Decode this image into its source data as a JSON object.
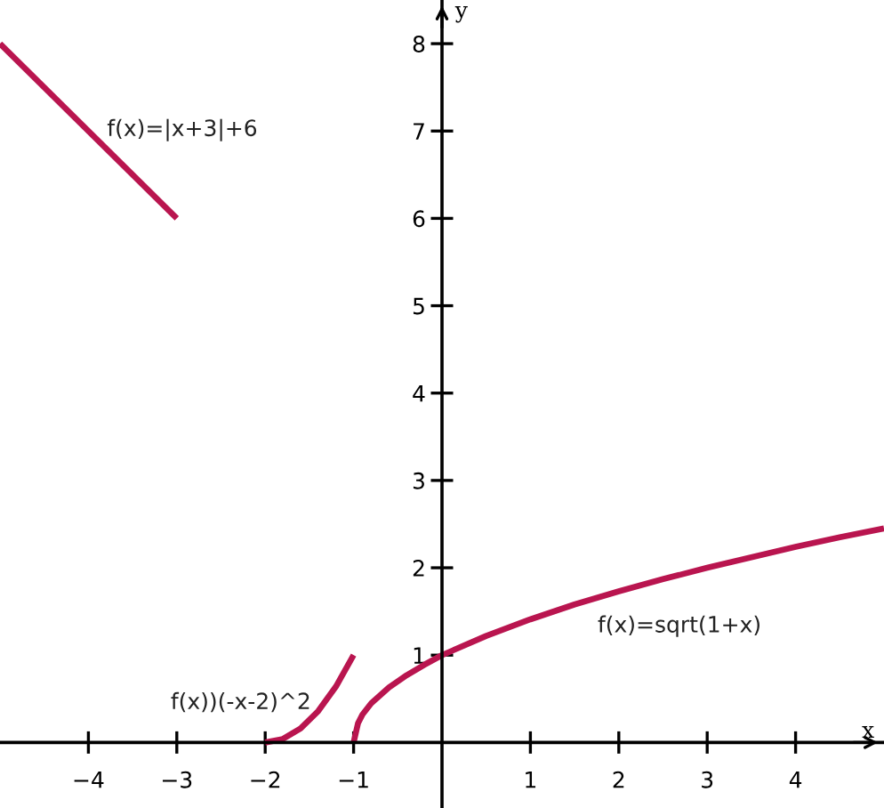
{
  "chart_data": {
    "type": "line",
    "xlabel": "x",
    "ylabel": "y",
    "xlim": [
      -5,
      5
    ],
    "ylim": [
      -0.75,
      8.5
    ],
    "xticks": [
      -4,
      -3,
      -2,
      -1,
      1,
      2,
      3,
      4
    ],
    "yticks": [
      1,
      2,
      3,
      4,
      5,
      6,
      7,
      8
    ],
    "grid": false,
    "marker": "none",
    "line_style": "solid",
    "series": [
      {
        "name": "f(x)=|x+3|+6",
        "color": "#b9154f",
        "x": [
          -5,
          -3
        ],
        "values": [
          8,
          6
        ]
      },
      {
        "name": "f(x))(-x-2)^2",
        "color": "#b9154f",
        "x": [
          -2,
          -1.8,
          -1.6,
          -1.4,
          -1.2,
          -1
        ],
        "values": [
          0,
          0.04,
          0.16,
          0.36,
          0.64,
          1
        ]
      },
      {
        "name": "f(x)=sqrt(1+x)",
        "color": "#b9154f",
        "x": [
          -1,
          -0.95,
          -0.9,
          -0.8,
          -0.6,
          -0.4,
          -0.2,
          0,
          0.5,
          1,
          1.5,
          2,
          2.5,
          3,
          3.5,
          4,
          4.5,
          5
        ],
        "values": [
          0,
          0.22,
          0.32,
          0.45,
          0.63,
          0.77,
          0.89,
          1,
          1.22,
          1.41,
          1.58,
          1.73,
          1.87,
          2,
          2.12,
          2.24,
          2.35,
          2.45
        ]
      }
    ]
  }
}
